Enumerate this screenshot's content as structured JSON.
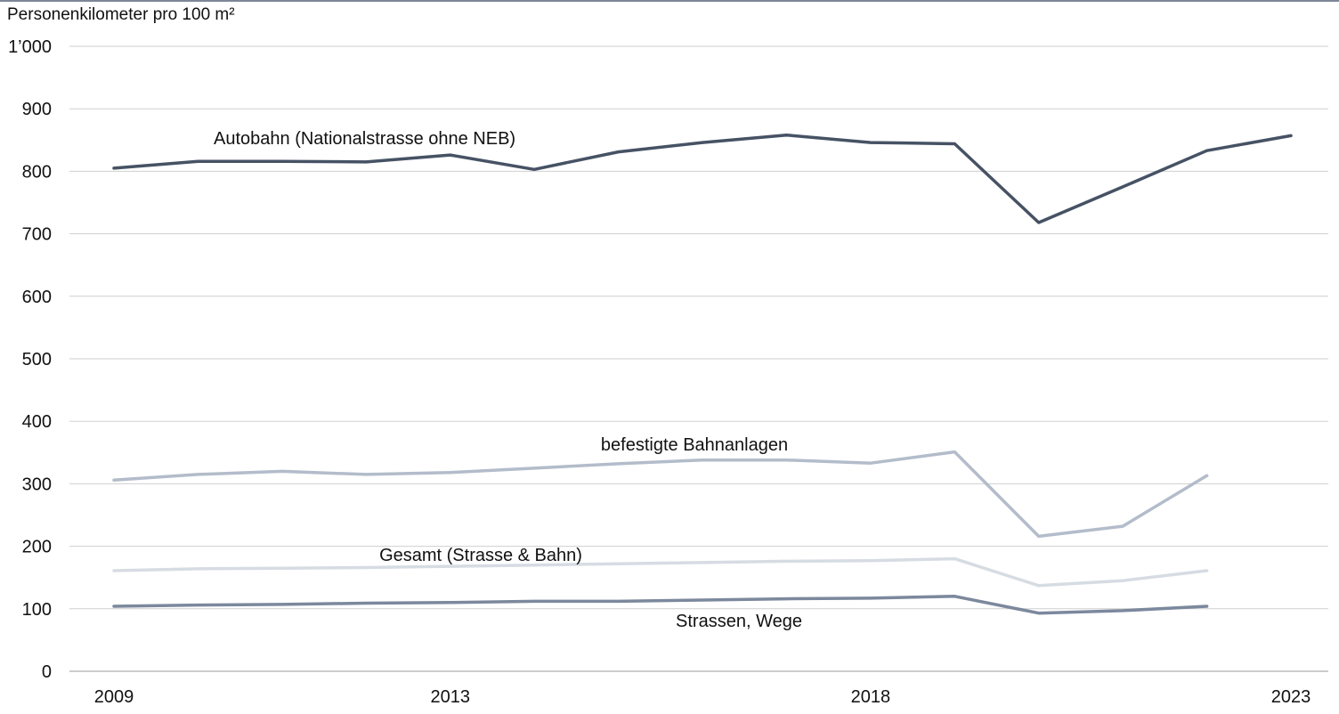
{
  "chart_data": {
    "type": "line",
    "title": "",
    "ylabel": "Personenkilometer pro 100 m²",
    "ylim": [
      0,
      1000
    ],
    "yticks": [
      {
        "value": 0,
        "label": "0"
      },
      {
        "value": 100,
        "label": "100"
      },
      {
        "value": 200,
        "label": "200"
      },
      {
        "value": 300,
        "label": "300"
      },
      {
        "value": 400,
        "label": "400"
      },
      {
        "value": 500,
        "label": "500"
      },
      {
        "value": 600,
        "label": "600"
      },
      {
        "value": 700,
        "label": "700"
      },
      {
        "value": 800,
        "label": "800"
      },
      {
        "value": 900,
        "label": "900"
      },
      {
        "value": 1000,
        "label": "1’000"
      }
    ],
    "xlim": [
      2009,
      2023
    ],
    "xticks": [
      2009,
      2013,
      2018,
      2023
    ],
    "x": [
      2009,
      2010,
      2011,
      2012,
      2013,
      2014,
      2015,
      2016,
      2017,
      2018,
      2019,
      2020,
      2021,
      2022,
      2023
    ],
    "grid": true,
    "series": [
      {
        "name": "Autobahn (Nationalstrasse ohne NEB)",
        "color": "#465264",
        "values": [
          805,
          816,
          816,
          815,
          826,
          803,
          831,
          846,
          858,
          846,
          844,
          718,
          775,
          833,
          857
        ]
      },
      {
        "name": "befestigte Bahnanlagen",
        "color": "#b3bcca",
        "values": [
          306,
          315,
          320,
          315,
          318,
          325,
          332,
          338,
          338,
          333,
          351,
          216,
          232,
          313,
          null
        ]
      },
      {
        "name": "Gesamt (Strasse & Bahn)",
        "color": "#d7dce3",
        "values": [
          161,
          164,
          165,
          166,
          168,
          170,
          172,
          174,
          176,
          177,
          180,
          137,
          145,
          161,
          null
        ]
      },
      {
        "name": "Strassen, Wege",
        "color": "#7c889c",
        "values": [
          104,
          106,
          107,
          109,
          110,
          112,
          112,
          114,
          116,
          117,
          120,
          93,
          97,
          104,
          null
        ]
      }
    ]
  }
}
